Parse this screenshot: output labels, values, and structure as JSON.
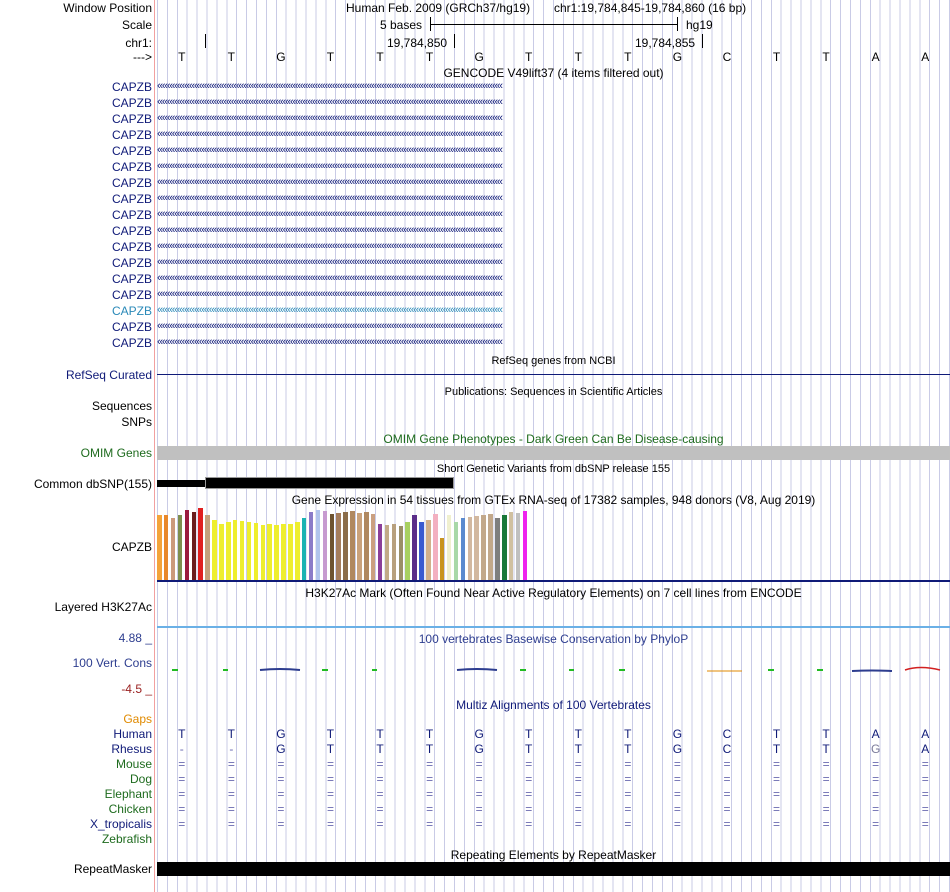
{
  "header": {
    "window_position_label": "Window Position",
    "assembly": "Human Feb. 2009 (GRCh37/hg19)",
    "position": "chr1:19,784,845-19,784,860 (16 bp)",
    "scale_label": "Scale",
    "scale_value": "5 bases",
    "scale_db": "hg19",
    "chrom_label": "chr1:",
    "coord_1": "19,784,850",
    "coord_2": "19,784,855",
    "strand_label": "--->"
  },
  "bases": [
    "T",
    "T",
    "G",
    "T",
    "T",
    "T",
    "G",
    "T",
    "T",
    "T",
    "G",
    "C",
    "T",
    "T",
    "A",
    "A"
  ],
  "gencode": {
    "title": "GENCODE V49lift37 (4 items filtered out)",
    "items": [
      "CAPZB",
      "CAPZB",
      "CAPZB",
      "CAPZB",
      "CAPZB",
      "CAPZB",
      "CAPZB",
      "CAPZB",
      "CAPZB",
      "CAPZB",
      "CAPZB",
      "CAPZB",
      "CAPZB",
      "CAPZB",
      "CAPZB",
      "CAPZB",
      "CAPZB"
    ],
    "arrows": "‹‹‹‹‹‹‹‹‹‹‹‹‹‹‹‹‹‹‹‹‹‹‹‹‹‹‹‹‹‹‹‹‹‹‹‹‹‹‹‹‹‹‹‹‹‹‹‹‹‹‹‹‹‹‹‹‹‹‹‹‹‹‹‹‹‹‹‹‹‹‹‹‹‹‹‹‹‹‹‹‹‹‹‹‹‹‹‹‹‹‹‹‹‹‹‹‹‹‹‹‹‹‹‹‹‹‹‹‹‹‹‹‹‹‹‹‹‹‹‹‹‹‹‹‹‹‹‹‹‹‹‹‹‹‹‹‹‹‹‹",
    "highlight_index": 14,
    "color": "#0f1a78",
    "highlight_color": "#2a89b8"
  },
  "refseq": {
    "title": "RefSeq genes from NCBI",
    "label": "RefSeq Curated"
  },
  "publications": {
    "title": "Publications: Sequences in Scientific Articles",
    "label_1": "Sequences",
    "label_2": "SNPs"
  },
  "omim": {
    "title": "OMIM Gene Phenotypes - Dark Green Can Be Disease-causing",
    "label": "OMIM Genes",
    "color": "#1e6b1e"
  },
  "dbsnp": {
    "title": "Short Genetic Variants from dbSNP release 155",
    "label": "Common dbSNP(155)"
  },
  "gtex": {
    "title": "Gene Expression in 54 tissues from GTEx RNA-seq of 17382 samples, 948 donors (V8, Aug 2019)",
    "label": "CAPZB",
    "colors": [
      "#f4a33a",
      "#e8882b",
      "#cc9a7c",
      "#7e8f4f",
      "#9b1b3e",
      "#6a1d1d",
      "#e02020",
      "#c4a07c",
      "#eeee2e",
      "#eeee2e",
      "#eeee2e",
      "#eeee2e",
      "#eeee2e",
      "#eeee2e",
      "#eeee2e",
      "#eeee2e",
      "#eeee2e",
      "#eeee2e",
      "#eeee2e",
      "#eeee2e",
      "#eeee2e",
      "#1ab3b3",
      "#8a7bc8",
      "#b0c4ec",
      "#c79ad0",
      "#6e5330",
      "#a57d5c",
      "#8b6d4a",
      "#b08860",
      "#caa27c",
      "#b08860",
      "#cba080",
      "#8b3f9a",
      "#c2ab88",
      "#b8a07d",
      "#9a8f66",
      "#a8d060",
      "#5b2d8a",
      "#3a5ad0",
      "#d2b08a",
      "#f3b0c0",
      "#c8931e",
      "#f0f0d0",
      "#a8d8a8",
      "#5a8acf",
      "#d2b8a0",
      "#d2b8a0",
      "#c2a88a",
      "#c2a88a",
      "#7e7e7e",
      "#187838",
      "#d0c0a0",
      "#c0c0c0",
      "#ee22ee"
    ],
    "values": [
      65,
      65,
      62,
      65,
      70,
      68,
      72,
      65,
      60,
      56,
      58,
      60,
      59,
      58,
      57,
      55,
      56,
      55,
      56,
      56,
      58,
      62,
      68,
      70,
      69,
      66,
      67,
      68,
      69,
      67,
      68,
      66,
      56,
      55,
      56,
      54,
      58,
      65,
      58,
      60,
      66,
      42,
      65,
      58,
      62,
      63,
      64,
      65,
      66,
      62,
      65,
      68,
      67,
      69
    ]
  },
  "h3k27ac": {
    "title": "H3K27Ac Mark (Often Found Near Active Regulatory Elements) on 7 cell lines from ENCODE",
    "label": "Layered H3K27Ac"
  },
  "phylop": {
    "title": "100 vertebrates Basewise Conservation by PhyloP",
    "label": "100 Vert. Cons",
    "max": "4.88 _",
    "min": "-4.5 _",
    "color": "#2d3d8f",
    "min_color": "#9a2020"
  },
  "multiz": {
    "title": "Multiz Alignments of 100 Vertebrates",
    "gaps_label": "Gaps",
    "gaps_color": "#e08a00",
    "species": [
      {
        "name": "Human",
        "color": "#0f1a78",
        "seq": [
          "T",
          "T",
          "G",
          "T",
          "T",
          "T",
          "G",
          "T",
          "T",
          "T",
          "G",
          "C",
          "T",
          "T",
          "A",
          "A"
        ]
      },
      {
        "name": "Rhesus",
        "color": "#0f1a78",
        "seq": [
          "-",
          "-",
          "G",
          "T",
          "T",
          "T",
          "G",
          "T",
          "T",
          "T",
          "G",
          "C",
          "T",
          "T",
          "G",
          "A"
        ]
      },
      {
        "name": "Mouse",
        "color": "#1e6b1e",
        "seq": [
          "=",
          "=",
          "=",
          "=",
          "=",
          "=",
          "=",
          "=",
          "=",
          "=",
          "=",
          "=",
          "=",
          "=",
          "=",
          "="
        ]
      },
      {
        "name": "Dog",
        "color": "#1e6b1e",
        "seq": [
          "=",
          "=",
          "=",
          "=",
          "=",
          "=",
          "=",
          "=",
          "=",
          "=",
          "=",
          "=",
          "=",
          "=",
          "=",
          "="
        ]
      },
      {
        "name": "Elephant",
        "color": "#1e6b1e",
        "seq": [
          "=",
          "=",
          "=",
          "=",
          "=",
          "=",
          "=",
          "=",
          "=",
          "=",
          "=",
          "=",
          "=",
          "=",
          "=",
          "="
        ]
      },
      {
        "name": "Chicken",
        "color": "#1e6b1e",
        "seq": [
          "=",
          "=",
          "=",
          "=",
          "=",
          "=",
          "=",
          "=",
          "=",
          "=",
          "=",
          "=",
          "=",
          "=",
          "=",
          "="
        ]
      },
      {
        "name": "X_tropicalis",
        "color": "#0f1a78",
        "seq": [
          "=",
          "=",
          "=",
          "=",
          "=",
          "=",
          "=",
          "=",
          "=",
          "=",
          "=",
          "=",
          "=",
          "=",
          "=",
          "="
        ]
      },
      {
        "name": "Zebrafish",
        "color": "#1e6b1e",
        "seq": []
      }
    ]
  },
  "repeatmasker": {
    "title": "Repeating Elements by RepeatMasker",
    "label": "RepeatMasker"
  }
}
